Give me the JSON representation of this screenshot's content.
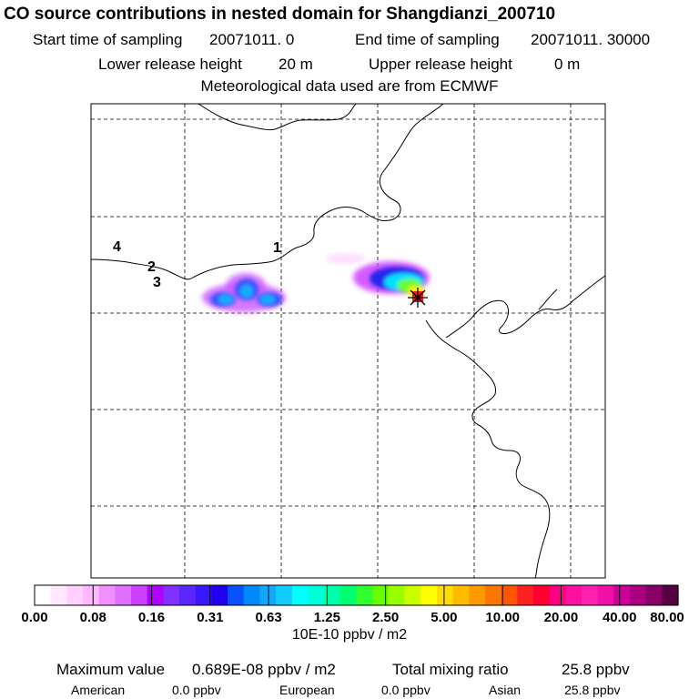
{
  "header": {
    "title": "CO  source contributions in nested domain for Shangdianzi_200710",
    "start_label": "Start time of sampling",
    "start_value": "20071011.     0",
    "end_label": "End time of sampling",
    "end_value": "20071011. 30000",
    "lower_label": "Lower release height",
    "lower_value": "20 m",
    "upper_label": "Upper release height",
    "upper_value": "0 m",
    "met_line": "Meteorological data used are from ECMWF"
  },
  "map": {
    "labels": [
      "4",
      "2",
      "3",
      "1"
    ],
    "receptor_marker": "star-icon",
    "colors": {
      "frame": "#000000",
      "grid": "#000000",
      "coast": "#000000"
    }
  },
  "colorbar": {
    "ticks": [
      "0.00",
      "0.08",
      "0.16",
      "0.31",
      "0.63",
      "1.25",
      "2.50",
      "5.00",
      "10.00",
      "20.00",
      "40.00",
      "80.00"
    ],
    "colors": [
      "#ffffff",
      "#ffe8ff",
      "#ffd0ff",
      "#ffb8ff",
      "#f090ff",
      "#e070ff",
      "#cc40ff",
      "#b000ff",
      "#8030ff",
      "#5a28ff",
      "#3a18ff",
      "#2000ee",
      "#0a50ff",
      "#0088ff",
      "#10a8ff",
      "#10ccff",
      "#00ffff",
      "#00ffd8",
      "#00ffaa",
      "#00ff70",
      "#30ff30",
      "#66ff00",
      "#99ff00",
      "#ccff00",
      "#ffff00",
      "#ffdd00",
      "#ffbb00",
      "#ff9900",
      "#ff7700",
      "#ff5500",
      "#ff2020",
      "#ff0030",
      "#ff0080",
      "#ff10a0",
      "#ff20b0",
      "#ee10a8",
      "#cc0099",
      "#aa0080",
      "#880066",
      "#550040"
    ],
    "units": "10E-10 ppbv / m2"
  },
  "stats": {
    "max_label": "Maximum value",
    "max_value": "0.689E-08 ppbv / m2",
    "total_label": "Total mixing ratio",
    "total_value": "25.8 ppbv",
    "american_label": "American",
    "american_value": "0.0 ppbv",
    "european_label": "European",
    "european_value": "0.0 ppbv",
    "asian_label": "Asian",
    "asian_value": "25.8 ppbv"
  }
}
